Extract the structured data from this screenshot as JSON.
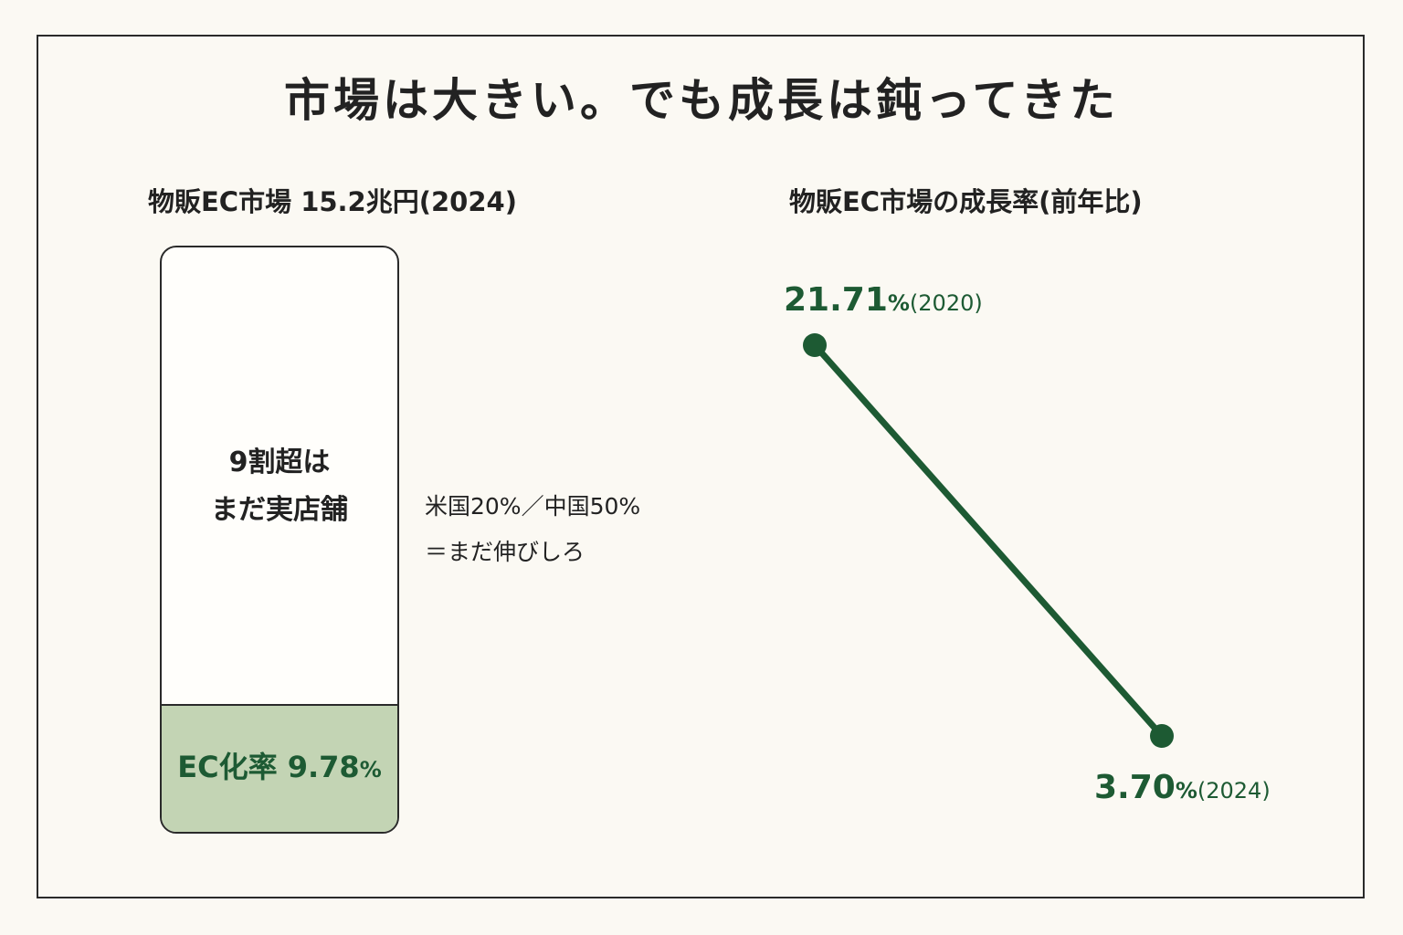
{
  "title": "市場は大きい。でも成長は鈍ってきた",
  "left": {
    "subtitle": "物販EC市場 15.2兆円(2024)",
    "store_line1": "9割超は",
    "store_line2": "まだ実店舗",
    "ec_label": "EC化率 9.78",
    "pct_sign": "%",
    "note_line1": "米国20%／中国50%",
    "note_line2": "＝まだ伸びしろ"
  },
  "right": {
    "subtitle": "物販EC市場の成長率(前年比)",
    "label_2020_value": "21.71",
    "label_2020_pct": "%",
    "label_2020_year": "(2020)",
    "label_2024_value": "3.70",
    "label_2024_pct": "%",
    "label_2024_year": "(2024)"
  },
  "colors": {
    "accent": "#1d5a33",
    "ec_fill": "#c3d4b4",
    "background": "#fbf9f3"
  },
  "chart_data": [
    {
      "type": "bar",
      "title": "物販EC市場 15.2兆円(2024)",
      "categories": [
        "EC",
        "実店舗"
      ],
      "values": [
        9.78,
        90.22
      ],
      "unit": "%",
      "ylim": [
        0,
        100
      ],
      "stacked": true,
      "annotations": [
        "9割超は まだ実店舗",
        "EC化率 9.78%",
        "米国20%／中国50%",
        "＝まだ伸びしろ"
      ]
    },
    {
      "type": "line",
      "title": "物販EC市場の成長率(前年比)",
      "x": [
        2020,
        2024
      ],
      "values": [
        21.71,
        3.7
      ],
      "unit": "%"
    }
  ]
}
